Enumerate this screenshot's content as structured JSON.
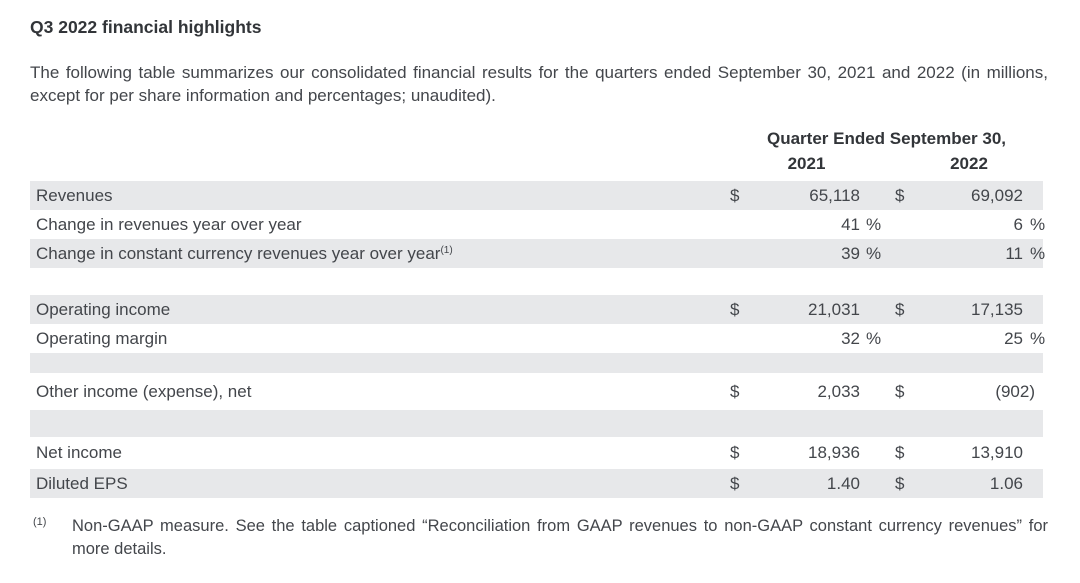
{
  "page": {
    "title": "Q3 2022 financial highlights",
    "intro": "The following table summarizes our consolidated financial results for the quarters ended September 30, 2021 and 2022 (in millions, except for per share information and percentages; unaudited)."
  },
  "table": {
    "header": {
      "group": "Quarter Ended September 30,",
      "col_2021": "2021",
      "col_2022": "2022"
    },
    "rows": [
      {
        "label": "Revenues",
        "cur1": "$",
        "val1": "65,118",
        "unit1": "",
        "cur2": "$",
        "val2": "69,092",
        "unit2": ""
      },
      {
        "label": "Change in revenues year over year",
        "cur1": "",
        "val1": "41",
        "unit1": "%",
        "cur2": "",
        "val2": "6",
        "unit2": "%"
      },
      {
        "label": "Change in constant currency revenues year over year",
        "footnote_ref": "(1)",
        "cur1": "",
        "val1": "39",
        "unit1": "%",
        "cur2": "",
        "val2": "11",
        "unit2": "%"
      },
      {
        "label": "Operating income",
        "cur1": "$",
        "val1": "21,031",
        "unit1": "",
        "cur2": "$",
        "val2": "17,135",
        "unit2": ""
      },
      {
        "label": "Operating margin",
        "cur1": "",
        "val1": "32",
        "unit1": "%",
        "cur2": "",
        "val2": "25",
        "unit2": "%"
      },
      {
        "label": "Other income (expense), net",
        "cur1": "$",
        "val1": "2,033",
        "unit1": "",
        "cur2": "$",
        "val2": "(902)",
        "unit2": ""
      },
      {
        "label": "Net income",
        "cur1": "$",
        "val1": "18,936",
        "unit1": "",
        "cur2": "$",
        "val2": "13,910",
        "unit2": ""
      },
      {
        "label": "Diluted EPS",
        "cur1": "$",
        "val1": "1.40",
        "unit1": "",
        "cur2": "$",
        "val2": "1.06",
        "unit2": ""
      }
    ]
  },
  "footnote": {
    "marker": "(1)",
    "text": "Non-GAAP measure. See the table captioned “Reconciliation from GAAP revenues to non-GAAP constant currency revenues” for more details."
  },
  "colors": {
    "row_shade": "#e7e8ea",
    "text": "#43464b"
  }
}
